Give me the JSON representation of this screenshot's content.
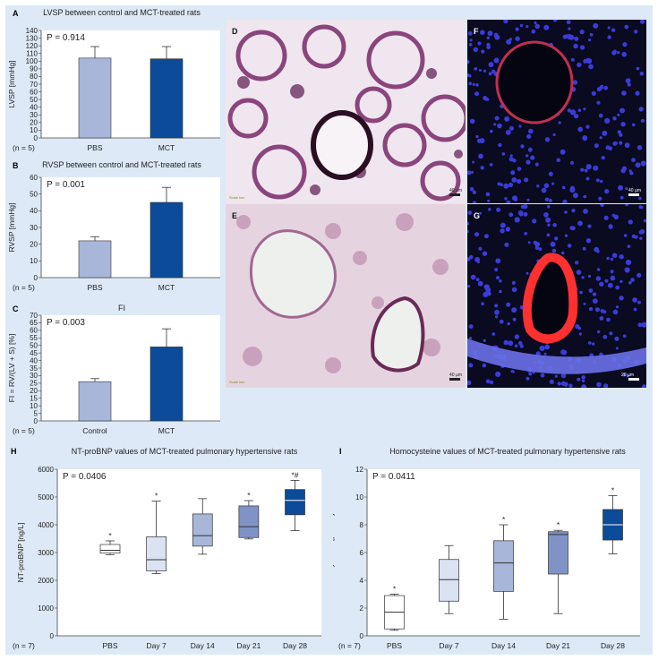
{
  "colors": {
    "light": "#a7b6d9",
    "dark": "#0b4b9a",
    "frame": "#dde9f6"
  },
  "panels": {
    "A": {
      "letter": "A",
      "chart_data": {
        "type": "bar",
        "title": "LVSP between control and MCT-treated rats",
        "ylabel": "LVSP [mmHg]",
        "categories": [
          "PBS",
          "MCT"
        ],
        "values": [
          104,
          103
        ],
        "errors": [
          15,
          16
        ],
        "ylim": [
          0,
          140
        ],
        "yticks": [
          0,
          10,
          20,
          30,
          40,
          50,
          60,
          70,
          80,
          90,
          100,
          110,
          120,
          130,
          140
        ],
        "p": "P = 0.914",
        "n": "(n = 5)"
      }
    },
    "B": {
      "letter": "B",
      "chart_data": {
        "type": "bar",
        "title": "RVSP between control and MCT-treated rats",
        "ylabel": "RVSP [mmHg]",
        "categories": [
          "PBS",
          "MCT"
        ],
        "values": [
          22,
          45
        ],
        "errors": [
          2.5,
          9
        ],
        "ylim": [
          0,
          60
        ],
        "yticks": [
          0,
          10,
          20,
          30,
          40,
          50,
          60
        ],
        "p": "P = 0.001",
        "n": "(n = 5)"
      }
    },
    "C": {
      "letter": "C",
      "chart_data": {
        "type": "bar",
        "title": "FI",
        "ylabel": "FI = RV/(LV + S) [%]",
        "categories": [
          "Control",
          "MCT"
        ],
        "values": [
          26,
          49
        ],
        "errors": [
          2,
          12
        ],
        "ylim": [
          0,
          70
        ],
        "yticks": [
          0,
          5,
          10,
          15,
          20,
          25,
          30,
          35,
          40,
          45,
          50,
          55,
          60,
          65,
          70
        ],
        "p": "P = 0.003",
        "n": "(n = 5)"
      }
    },
    "H": {
      "letter": "H",
      "chart_data": {
        "type": "box",
        "title": "NT-proBNP values of MCT-treated pulmonary hypertensive rats",
        "ylabel": "NT-proBNP [ng/L]",
        "categories": [
          "PBS",
          "Day 7",
          "Day 14",
          "Day 21",
          "Day 28"
        ],
        "boxes": [
          {
            "min": 2920,
            "q1": 2980,
            "median": 3080,
            "q3": 3290,
            "max": 3420,
            "mark": "*"
          },
          {
            "min": 2240,
            "q1": 2340,
            "median": 2740,
            "q3": 3570,
            "max": 4850,
            "mark": "*"
          },
          {
            "min": 2940,
            "q1": 3230,
            "median": 3610,
            "q3": 4390,
            "max": 4940,
            "mark": ""
          },
          {
            "min": 3490,
            "q1": 3540,
            "median": 3930,
            "q3": 4680,
            "max": 4870,
            "mark": "*"
          },
          {
            "min": 3790,
            "q1": 4360,
            "median": 4880,
            "q3": 5270,
            "max": 5600,
            "mark": "*#"
          }
        ],
        "ylim": [
          0,
          6000
        ],
        "yticks": [
          0,
          1000,
          2000,
          3000,
          4000,
          5000,
          6000
        ],
        "p": "P = 0.0406",
        "n": "(n = 7)"
      }
    },
    "I": {
      "letter": "I",
      "chart_data": {
        "type": "box",
        "title": "Homocysteine values of MCT-treated pulmonary hypertensive rats",
        "ylabel": "Homocysteine [µmol/L]",
        "categories": [
          "PBS",
          "Day 7",
          "Day 14",
          "Day 21",
          "Day 28"
        ],
        "boxes": [
          {
            "min": 0.4,
            "q1": 0.5,
            "median": 1.7,
            "q3": 2.9,
            "max": 3.0,
            "mark": "*"
          },
          {
            "min": 1.6,
            "q1": 2.5,
            "median": 4.05,
            "q3": 5.5,
            "max": 6.5,
            "mark": ""
          },
          {
            "min": 1.2,
            "q1": 3.2,
            "median": 5.25,
            "q3": 6.85,
            "max": 8.0,
            "mark": "*"
          },
          {
            "min": 1.6,
            "q1": 4.45,
            "median": 7.3,
            "q3": 7.5,
            "max": 7.6,
            "mark": "*"
          },
          {
            "min": 5.9,
            "q1": 6.9,
            "median": 8.0,
            "q3": 9.1,
            "max": 10.1,
            "mark": "*"
          }
        ],
        "ylim": [
          0,
          12
        ],
        "yticks": [
          0,
          2,
          4,
          6,
          8,
          10,
          12
        ],
        "p": "P = 0.0411",
        "n": "(n = 7)"
      }
    }
  },
  "micrographs": [
    {
      "letter": "D",
      "scale": "40 µm",
      "tag": "Scale bar"
    },
    {
      "letter": "F",
      "scale": "40 µm",
      "tag": ""
    },
    {
      "letter": "E",
      "scale": "40 µm",
      "tag": "Scale bar"
    },
    {
      "letter": "G",
      "scale": "20 µm",
      "tag": ""
    }
  ]
}
